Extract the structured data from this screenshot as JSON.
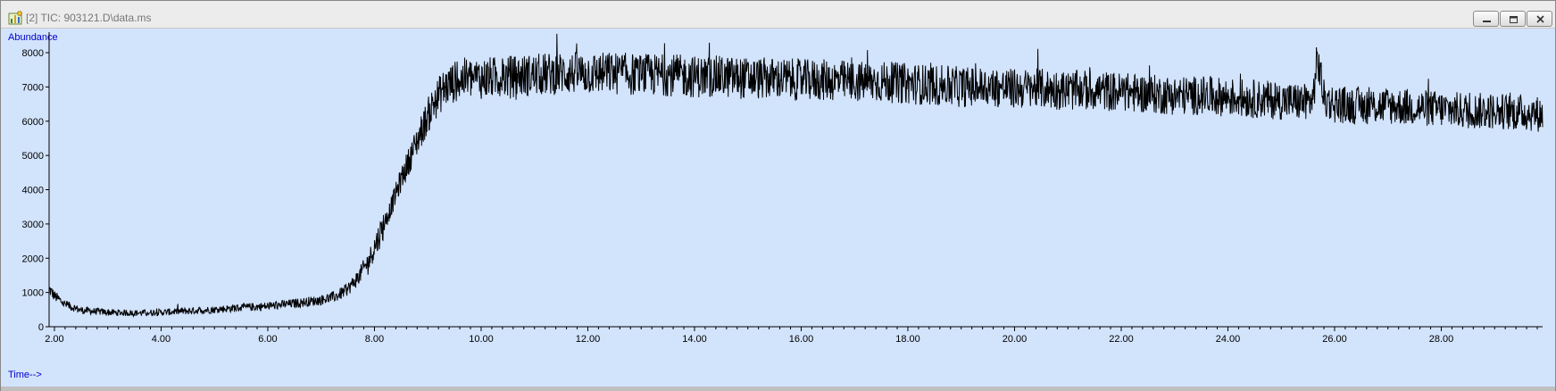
{
  "window": {
    "title": "[2] TIC: 903121.D\\data.ms",
    "icon": "chromatogram-app-icon",
    "controls": [
      "minimize-icon",
      "restore-icon",
      "close-icon"
    ]
  },
  "colors": {
    "plot_background": "#d2e3fc",
    "trace": "#000000",
    "axis_label": "#0000cc"
  },
  "chart_data": {
    "type": "line",
    "ylabel": "Abundance",
    "xlabel": "Time-->",
    "xlim": [
      1.9,
      29.9
    ],
    "ylim": [
      0,
      8600
    ],
    "x_ticks": [
      "2.00",
      "4.00",
      "6.00",
      "8.00",
      "10.00",
      "12.00",
      "14.00",
      "16.00",
      "18.00",
      "20.00",
      "22.00",
      "24.00",
      "26.00",
      "28.00"
    ],
    "x_tick_values": [
      2,
      4,
      6,
      8,
      10,
      12,
      14,
      16,
      18,
      20,
      22,
      24,
      26,
      28
    ],
    "y_ticks": [
      "0",
      "1000",
      "2000",
      "3000",
      "4000",
      "5000",
      "6000",
      "7000",
      "8000"
    ],
    "y_tick_values": [
      0,
      1000,
      2000,
      3000,
      4000,
      5000,
      6000,
      7000,
      8000
    ],
    "grid": false,
    "legend": "none",
    "series": [
      {
        "x": [
          1.9,
          2.0,
          2.2,
          2.5,
          3.0,
          3.5,
          4.0,
          4.5,
          5.0,
          5.5,
          6.0,
          6.5,
          7.0,
          7.3,
          7.5,
          7.7,
          7.9,
          8.1,
          8.3,
          8.5,
          8.7,
          8.9,
          9.1,
          9.3,
          9.5,
          9.7,
          10.0,
          10.5,
          11.0,
          11.5,
          12.0,
          12.5,
          13.0,
          13.5,
          14.0,
          14.5,
          15.0,
          15.5,
          16.0,
          16.5,
          17.0,
          17.5,
          18.0,
          18.5,
          19.0,
          19.5,
          20.0,
          20.5,
          21.0,
          21.5,
          22.0,
          22.5,
          23.0,
          23.5,
          24.0,
          24.5,
          25.0,
          25.5,
          25.6,
          25.65,
          25.7,
          25.75,
          25.8,
          26.0,
          26.5,
          27.0,
          27.5,
          28.0,
          28.5,
          29.0,
          29.5,
          29.9
        ],
        "y": [
          1100,
          900,
          650,
          480,
          420,
          400,
          420,
          460,
          500,
          560,
          600,
          680,
          780,
          900,
          1100,
          1450,
          1950,
          2700,
          3450,
          4300,
          5050,
          5800,
          6500,
          6950,
          7150,
          7250,
          7250,
          7300,
          7350,
          7400,
          7400,
          7400,
          7350,
          7350,
          7300,
          7300,
          7250,
          7250,
          7200,
          7200,
          7150,
          7150,
          7100,
          7050,
          7000,
          7000,
          6950,
          6950,
          6900,
          6900,
          6850,
          6800,
          6750,
          6750,
          6700,
          6650,
          6600,
          6550,
          6650,
          7500,
          7700,
          7200,
          6650,
          6500,
          6450,
          6450,
          6400,
          6350,
          6300,
          6300,
          6250,
          6200
        ]
      }
    ]
  }
}
